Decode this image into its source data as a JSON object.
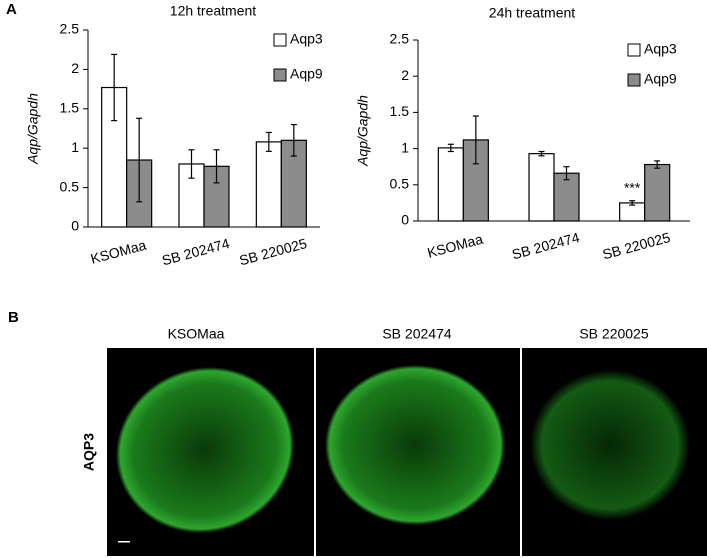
{
  "panels": {
    "a_label": "A",
    "b_label": "B"
  },
  "chart_data": [
    {
      "type": "bar",
      "title": "12h treatment",
      "y_label": "Aqp/Gapdh",
      "categories": [
        "KSOMaa",
        "SB 202474",
        "SB 220025"
      ],
      "series": [
        {
          "name": "Aqp3",
          "color": "#ffffff",
          "values": [
            1.77,
            0.8,
            1.08
          ],
          "errors": [
            0.42,
            0.18,
            0.12
          ]
        },
        {
          "name": "Aqp9",
          "color": "#8c8c8c",
          "values": [
            0.85,
            0.77,
            1.1
          ],
          "errors": [
            0.53,
            0.21,
            0.2
          ]
        }
      ],
      "ylim": [
        0,
        2.5
      ],
      "yticks": [
        0,
        0.5,
        1,
        1.5,
        2,
        2.5
      ],
      "grid": false,
      "legend": "upper right"
    },
    {
      "type": "bar",
      "title": "24h treatment",
      "y_label": "Aqp/Gapdh",
      "categories": [
        "KSOMaa",
        "SB 202474",
        "SB 220025"
      ],
      "series": [
        {
          "name": "Aqp3",
          "color": "#ffffff",
          "values": [
            1.01,
            0.93,
            0.25
          ],
          "errors": [
            0.05,
            0.03,
            0.03
          ]
        },
        {
          "name": "Aqp9",
          "color": "#8c8c8c",
          "values": [
            1.12,
            0.66,
            0.78
          ],
          "errors": [
            0.33,
            0.09,
            0.05
          ]
        }
      ],
      "annotations": [
        {
          "text": "***"
        }
      ],
      "ylim": [
        0,
        2.5
      ],
      "yticks": [
        0,
        0.5,
        1,
        1.5,
        2,
        2.5
      ],
      "grid": false,
      "legend": "upper right"
    }
  ],
  "images": {
    "columns": [
      "KSOMaa",
      "SB 202474",
      "SB 220025"
    ],
    "row_label": "AQP3"
  }
}
